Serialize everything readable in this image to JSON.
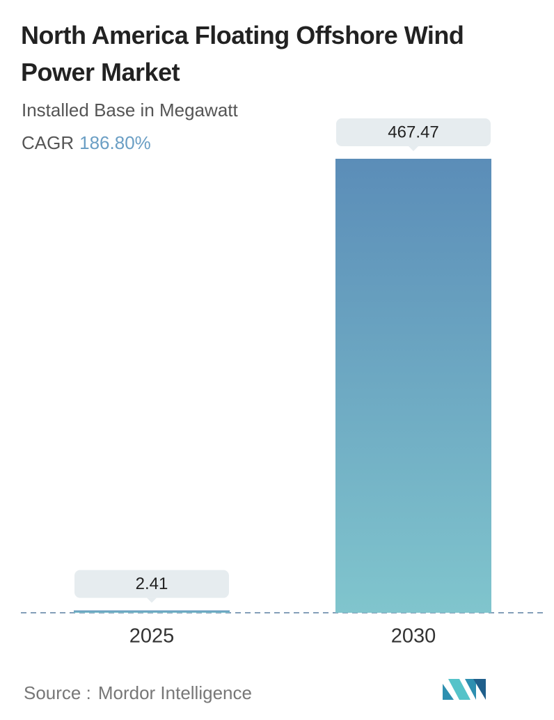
{
  "chart_data": {
    "type": "bar",
    "title": "North America Floating Offshore Wind Power Market",
    "subtitle": "Installed Base in Megawatt",
    "cagr_label": "CAGR",
    "cagr_value": "186.80%",
    "categories": [
      "2025",
      "2030"
    ],
    "values": [
      2.41,
      467.47
    ],
    "gradient": [
      "#5b8db8",
      "#80c5cd"
    ],
    "source_label": "Source :",
    "source": "Mordor Intelligence"
  }
}
